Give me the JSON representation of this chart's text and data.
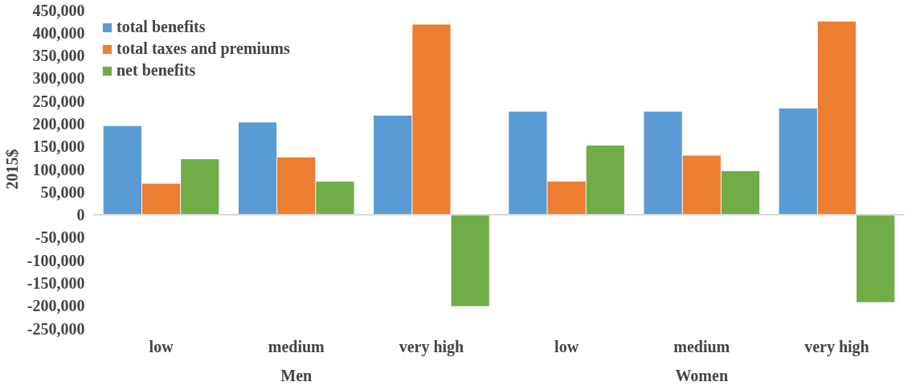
{
  "chart_data": {
    "type": "bar",
    "categories": [
      "low",
      "medium",
      "very high",
      "low",
      "medium",
      "very high"
    ],
    "series": [
      {
        "name": "total benefits",
        "color": "#5b9bd5",
        "values": [
          195000,
          203000,
          218000,
          227000,
          227000,
          234000
        ]
      },
      {
        "name": "total taxes and premiums",
        "color": "#ed7d31",
        "values": [
          68000,
          126000,
          418000,
          73000,
          130000,
          425000
        ]
      },
      {
        "name": "net benefits",
        "color": "#70ad47",
        "values": [
          122000,
          73000,
          -201000,
          152000,
          96000,
          -192000
        ]
      }
    ],
    "ylabel": "2015$",
    "ylim": [
      -250000,
      450000
    ],
    "yticks": [
      {
        "value": -250000,
        "label": "-250,000"
      },
      {
        "value": -200000,
        "label": "-200,000"
      },
      {
        "value": -150000,
        "label": "-150,000"
      },
      {
        "value": -100000,
        "label": "-100,000"
      },
      {
        "value": -50000,
        "label": "-50,000"
      },
      0,
      {
        "value": 50000,
        "label": "50,000"
      },
      {
        "value": 100000,
        "label": "100,000"
      },
      {
        "value": 150000,
        "label": "150,000"
      },
      {
        "value": 200000,
        "label": "200,000"
      },
      {
        "value": 250000,
        "label": "250,000"
      },
      {
        "value": 300000,
        "label": "300,000"
      },
      {
        "value": 350000,
        "label": "350,000"
      },
      {
        "value": 400000,
        "label": "400,000"
      },
      {
        "value": 450000,
        "label": "450,000"
      }
    ],
    "annotations": [
      "Men",
      "Women"
    ],
    "ref_lines": [
      {
        "axis": "y",
        "value": 0,
        "color": "#d9d9d9"
      }
    ],
    "legend": "top left",
    "grid": false
  }
}
